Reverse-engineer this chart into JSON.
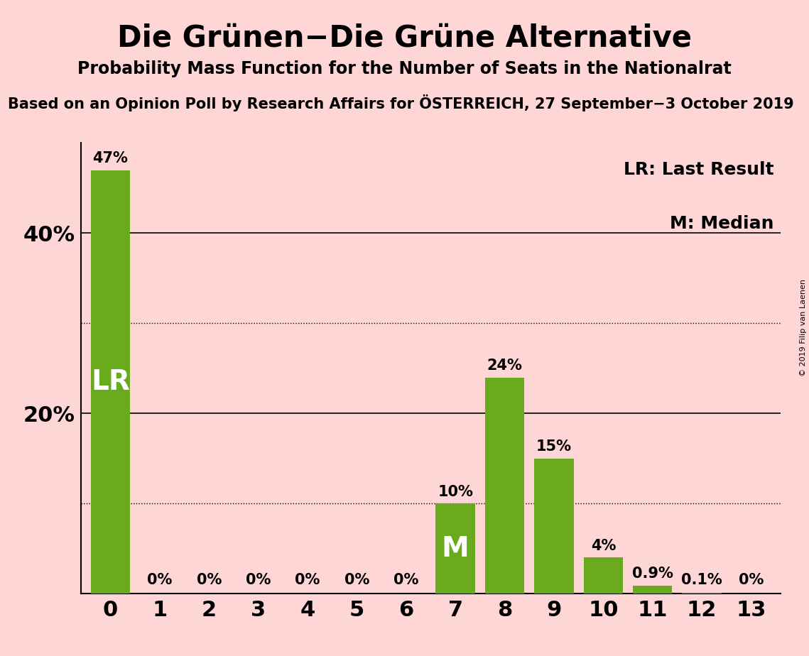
{
  "title": "Die Grünen−Die Grüne Alternative",
  "subtitle": "Probability Mass Function for the Number of Seats in the Nationalrat",
  "subsubtitle": "Based on an Opinion Poll by Research Affairs for ÖSTERREICH, 27 September−3 October 2019",
  "copyright": "© 2019 Filip van Laenen",
  "categories": [
    0,
    1,
    2,
    3,
    4,
    5,
    6,
    7,
    8,
    9,
    10,
    11,
    12,
    13
  ],
  "values": [
    47,
    0,
    0,
    0,
    0,
    0,
    0,
    10,
    24,
    15,
    4,
    0.9,
    0.1,
    0
  ],
  "bar_color": "#6aab1e",
  "background_color": "#ffd6d6",
  "label_LR_bar": 0,
  "label_M_bar": 7,
  "ylim": [
    0,
    50
  ],
  "solid_gridlines": [
    20,
    40
  ],
  "dotted_gridlines": [
    10,
    30
  ],
  "legend_LR": "LR: Last Result",
  "legend_M": "M: Median",
  "title_fontsize": 30,
  "subtitle_fontsize": 17,
  "subsubtitle_fontsize": 15,
  "bar_label_fontsize": 15,
  "axis_tick_fontsize": 22,
  "legend_fontsize": 18,
  "LR_label_fontsize": 28,
  "M_label_fontsize": 28
}
